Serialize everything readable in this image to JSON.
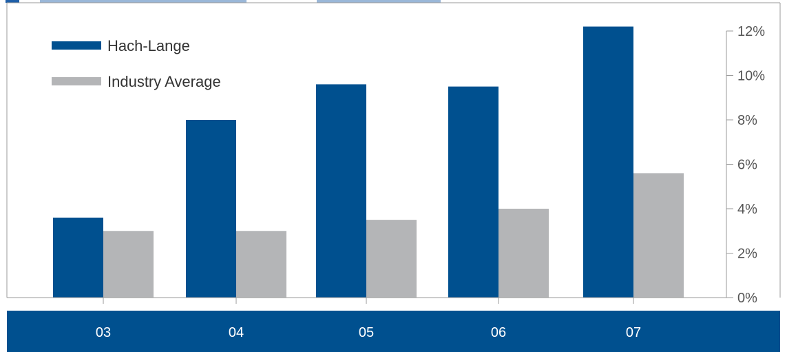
{
  "chart_data": {
    "type": "bar",
    "categories": [
      "03",
      "04",
      "05",
      "06",
      "07"
    ],
    "series": [
      {
        "name": "Hach-Lange",
        "values": [
          3.6,
          8.0,
          9.6,
          9.5,
          12.2
        ],
        "color": "#00508f"
      },
      {
        "name": "Industry Average",
        "values": [
          3.0,
          3.0,
          3.5,
          4.0,
          5.6
        ],
        "color": "#b4b5b7"
      }
    ],
    "y_ticks": [
      "0%",
      "2%",
      "4%",
      "6%",
      "8%",
      "10%",
      "12%"
    ],
    "y_tick_values": [
      0,
      2,
      4,
      6,
      8,
      10,
      12
    ],
    "ylim": [
      0,
      12
    ],
    "y_axis_position": "right",
    "legend_position": "top-left",
    "grid": false,
    "title": "",
    "xlabel": "",
    "ylabel": "",
    "colors": {
      "category_band": "#00508f",
      "header_text": "#1f5fa8",
      "axis": "#999999"
    }
  }
}
